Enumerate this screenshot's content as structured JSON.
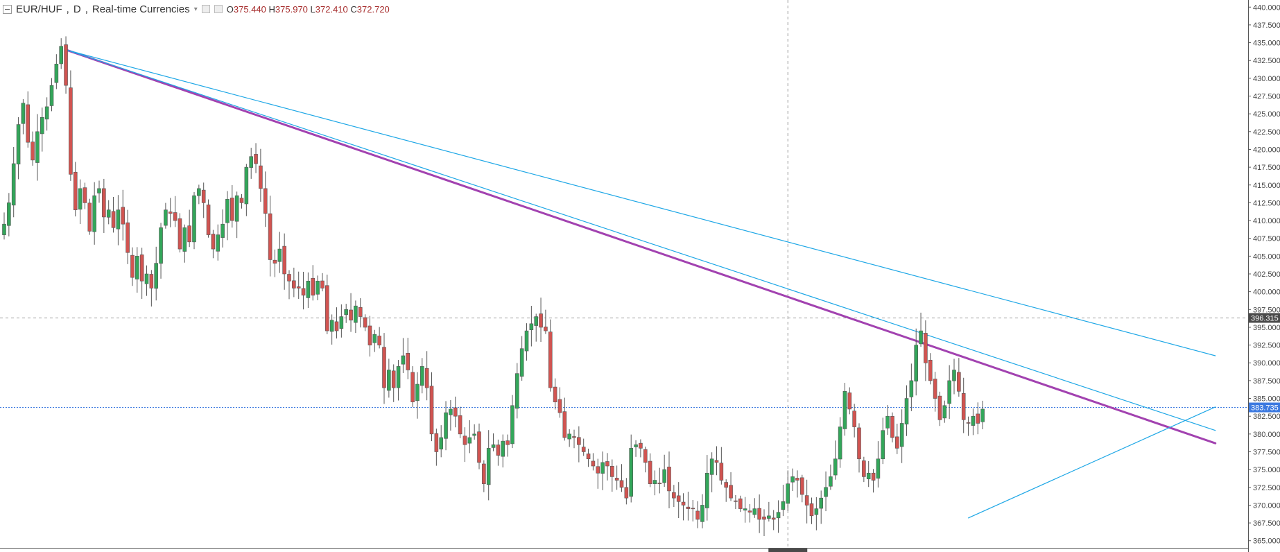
{
  "legend": {
    "symbol": "EUR/HUF",
    "interval": "D",
    "source": "Real-time Currencies",
    "open_label": "O",
    "open": "375.440",
    "high_label": "H",
    "high": "375.970",
    "low_label": "L",
    "low": "372.410",
    "close_label": "C",
    "close": "372.720",
    "icons": [
      "collapse-icon",
      "dropdown-arrow-icon",
      "visibility-icon",
      "settings-icon"
    ]
  },
  "colors": {
    "up": "#33a65a",
    "down": "#d15451",
    "wick": "#555555",
    "trendline_blue": "#1ea7e6",
    "trendline_purple": "#a242b0",
    "price_label_bg": "#3d7ae0",
    "crosshair_label_bg": "#4a4a4a"
  },
  "chart_data": {
    "type": "candlestick",
    "yaxis": {
      "min": 364,
      "max": 441,
      "ticks": [
        "365.000",
        "367.500",
        "370.000",
        "372.500",
        "375.000",
        "377.500",
        "380.000",
        "382.500",
        "385.000",
        "387.500",
        "390.000",
        "392.500",
        "395.000",
        "397.500",
        "400.000",
        "402.500",
        "405.000",
        "407.500",
        "410.000",
        "412.500",
        "415.000",
        "417.500",
        "420.000",
        "422.500",
        "425.000",
        "427.500",
        "430.000",
        "432.500",
        "435.000",
        "437.500",
        "440.000"
      ]
    },
    "current_price": {
      "value": 383.735,
      "label": "383.735"
    },
    "crosshair_price": {
      "value": 396.315,
      "label": "396.315"
    },
    "crosshair_bar_index": 165,
    "close_series": [
      409.5,
      412.5,
      418,
      423.5,
      426.5,
      421,
      418.5,
      422.5,
      424.5,
      426,
      429,
      432,
      434.5,
      429,
      416.5,
      411.5,
      414.5,
      412.5,
      408.5,
      413.5,
      414.5,
      410.5,
      411.5,
      409,
      411.5,
      409.5,
      405.5,
      402,
      405,
      401.5,
      402.5,
      400.5,
      404,
      409,
      411.5,
      411,
      410,
      406,
      409,
      407,
      413.5,
      414.5,
      412.5,
      408,
      406,
      408,
      409.5,
      413,
      410,
      413.5,
      412.5,
      417.5,
      419,
      418,
      414.5,
      411,
      404.5,
      404,
      406,
      402.5,
      401.5,
      400.5,
      400.5,
      399.5,
      401.5,
      399.5,
      401.5,
      400.5,
      394.5,
      396,
      394.5,
      396.5,
      397.5,
      396,
      398,
      396.5,
      395,
      392.5,
      394,
      392.5,
      386.5,
      389,
      386.5,
      389.5,
      391,
      389,
      384.5,
      387,
      389.5,
      386.5,
      380,
      377.5,
      379.5,
      383,
      383.5,
      382.5,
      380,
      378.5,
      379.5,
      380,
      376,
      373,
      378,
      378.5,
      377,
      379,
      378.5,
      384,
      388.5,
      392,
      394.5,
      395.5,
      396.5,
      395,
      394.5,
      386.5,
      384.5,
      383,
      379.5,
      380,
      379.5,
      378.5,
      377.5,
      376.5,
      375.5,
      374.5,
      376,
      375.5,
      374,
      373.5,
      372.5,
      371,
      378,
      378.5,
      378,
      376,
      373,
      373.5,
      373,
      375,
      372,
      371,
      370.5,
      370,
      369.5,
      369.5,
      368,
      370,
      374.5,
      376.5,
      376,
      373.5,
      372.5,
      371,
      370.5,
      369.5,
      369.5,
      369,
      369.5,
      368,
      368,
      368.5,
      368,
      369,
      370.5,
      373,
      374,
      373.5,
      371.5,
      370,
      368.5,
      369.5,
      371,
      372.5,
      374,
      376.5,
      381,
      386,
      383.5,
      381,
      376.5,
      374,
      374.5,
      373.5,
      376.5,
      380.5,
      382.5,
      379.5,
      378,
      381.5,
      385,
      387.5,
      392.5,
      394.5,
      390,
      387.5,
      385,
      382,
      384,
      387.5,
      389,
      386,
      382,
      381.5,
      382.5,
      381.5,
      383.5
    ],
    "trendlines": [
      {
        "style": "purple",
        "from": {
          "bar": 13,
          "price": 434
        },
        "to": {
          "bar": 255,
          "price": 378.7
        }
      },
      {
        "style": "blue",
        "from": {
          "bar": 13,
          "price": 434
        },
        "to": {
          "bar": 255,
          "price": 380.5
        }
      },
      {
        "style": "blue",
        "from": {
          "bar": 13,
          "price": 434
        },
        "to": {
          "bar": 255,
          "price": 391
        }
      },
      {
        "style": "blue",
        "from": {
          "bar": 203,
          "price": 368.2
        },
        "to": {
          "bar": 255,
          "price": 383.8
        }
      }
    ]
  }
}
